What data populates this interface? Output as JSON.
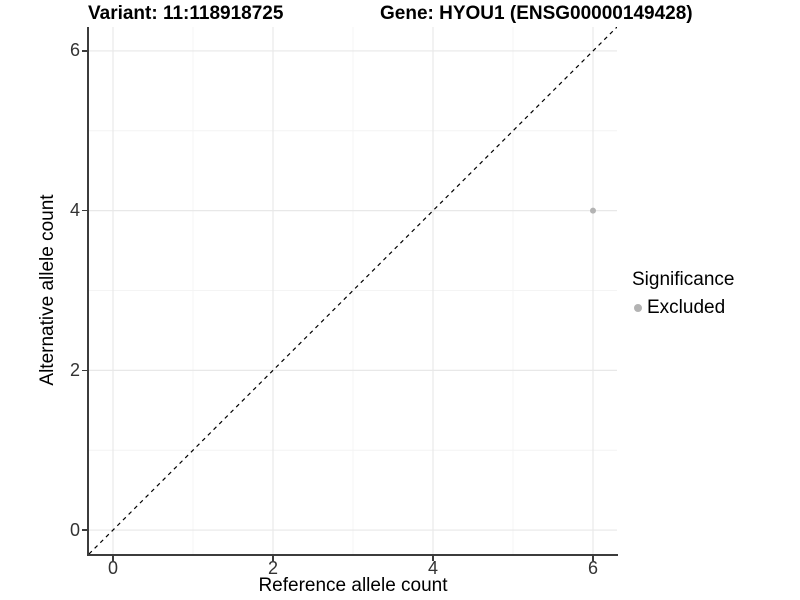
{
  "chart_data": {
    "type": "scatter",
    "titles": {
      "left": "Variant: 11:118918725",
      "right": "Gene: HYOU1 (ENSG00000149428)"
    },
    "xlabel": "Reference allele count",
    "ylabel": "Alternative allele count",
    "xlim": [
      -0.3,
      6.3
    ],
    "ylim": [
      -0.3,
      6.3
    ],
    "xticks": [
      0,
      2,
      4,
      6
    ],
    "yticks": [
      0,
      2,
      4,
      6
    ],
    "xticks_minor": [
      1,
      3,
      5
    ],
    "yticks_minor": [
      1,
      3,
      5
    ],
    "grid": "on",
    "identity_line": {
      "style": "dashed",
      "color": "#000000",
      "from": [
        -0.3,
        -0.3
      ],
      "to": [
        6.3,
        6.3
      ]
    },
    "series": [
      {
        "name": "Excluded",
        "color": "#b3b3b3",
        "points": [
          {
            "x": 6,
            "y": 4
          }
        ]
      }
    ],
    "legend": {
      "title": "Significance",
      "position": "right",
      "entries": [
        {
          "label": "Excluded",
          "color": "#b3b3b3"
        }
      ]
    },
    "colors": {
      "background": "#ffffff",
      "grid_major": "#e8e8e8",
      "grid_minor": "#f4f4f4",
      "axis_line": "#3c3c3c",
      "tick_label": "#333333",
      "point": "#b3b3b3"
    }
  }
}
